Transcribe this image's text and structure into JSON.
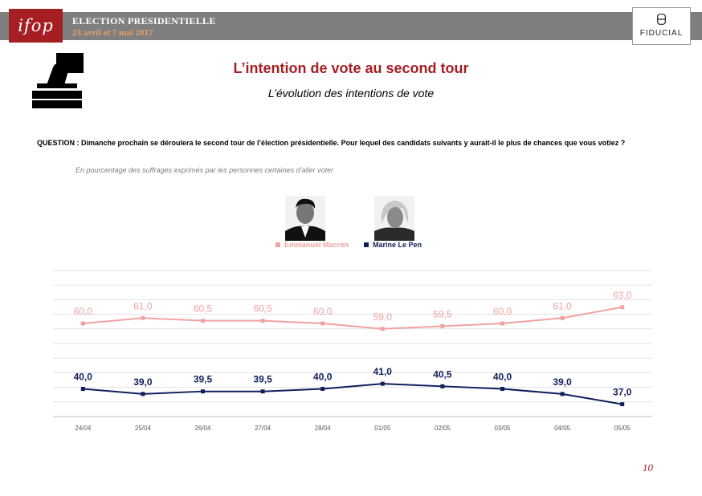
{
  "header": {
    "logo_text": "ifop",
    "election_title": "ELECTION PRESIDENTIELLE",
    "election_dates": "23 avril et 7 mai 2017",
    "partner_logo_text": "FIDUCIAL"
  },
  "title": "L’intention de vote au second tour",
  "subtitle": "L’évolution des intentions de vote",
  "question": "QUESTION : Dimanche prochain se déroulera le second tour de l’élection présidentielle. Pour lequel des candidats suivants y aurait-il le plus de chances que vous votiez ?",
  "note": "En pourcentage des suffrages exprimés par les personnes certaines d’aller voter",
  "page_number": "10",
  "icons": [
    "ballot-box-icon",
    "fiducial-logo",
    "macron-photo",
    "le-pen-photo"
  ],
  "colors": {
    "brand": "#a51e22",
    "macron": "#f0a3a2",
    "lepen": "#0f1f5c",
    "header_bar": "#7f7f7f"
  },
  "chart_data": {
    "type": "line",
    "categories": [
      "24/04",
      "25/04",
      "26/04",
      "27/04",
      "28/04",
      "01/05",
      "02/05",
      "03/05",
      "04/05",
      "05/05"
    ],
    "series": [
      {
        "name": "Emmanuel Macron",
        "color": "#f0a3a2",
        "values": [
          60.0,
          61.0,
          60.5,
          60.5,
          60.0,
          59.0,
          59.5,
          60.0,
          61.0,
          63.0
        ],
        "labels": [
          "60,0",
          "61,0",
          "60,5",
          "60,5",
          "60,0",
          "59,0",
          "59,5",
          "60,0",
          "61,0",
          "63,0"
        ]
      },
      {
        "name": "Marine Le Pen",
        "color": "#0f1f5c",
        "values": [
          40.0,
          39.0,
          39.5,
          39.5,
          40.0,
          41.0,
          40.5,
          40.0,
          39.0,
          37.0
        ],
        "labels": [
          "40,0",
          "39,0",
          "39,5",
          "39,5",
          "40,0",
          "41,0",
          "40,5",
          "40,0",
          "39,0",
          "37,0"
        ]
      }
    ],
    "y_segments": [
      {
        "from": 56,
        "to": 64
      },
      {
        "from": 36,
        "to": 44
      }
    ],
    "grid": true,
    "legend_position": "top-center"
  }
}
